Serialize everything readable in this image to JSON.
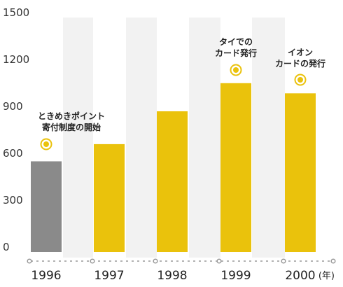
{
  "chart_data": {
    "type": "bar",
    "categories": [
      "1996",
      "1997",
      "1998",
      "1999",
      "2000"
    ],
    "values": [
      580,
      690,
      900,
      1080,
      1015
    ],
    "bar_colors": [
      "#8a8a8a",
      "#eac20c",
      "#eac20c",
      "#eac20c",
      "#eac20c"
    ],
    "ylim": [
      0,
      1500
    ],
    "yticks": [
      "0",
      "300",
      "600",
      "900",
      "1200",
      "1500"
    ],
    "x_unit": "(年)",
    "grid": false,
    "annotations": [
      {
        "category": "1996",
        "lines": [
          "ときめきポイント",
          "寄付制度の開始"
        ]
      },
      {
        "category": "1999",
        "lines": [
          "タイでの",
          "カード発行"
        ]
      },
      {
        "category": "2000",
        "lines": [
          "イオン",
          "カードの発行"
        ]
      }
    ],
    "colors": {
      "highlight": "#eac20c",
      "first_bar": "#8a8a8a",
      "stripe": "#f2f2f2",
      "axis": "#999999"
    }
  }
}
